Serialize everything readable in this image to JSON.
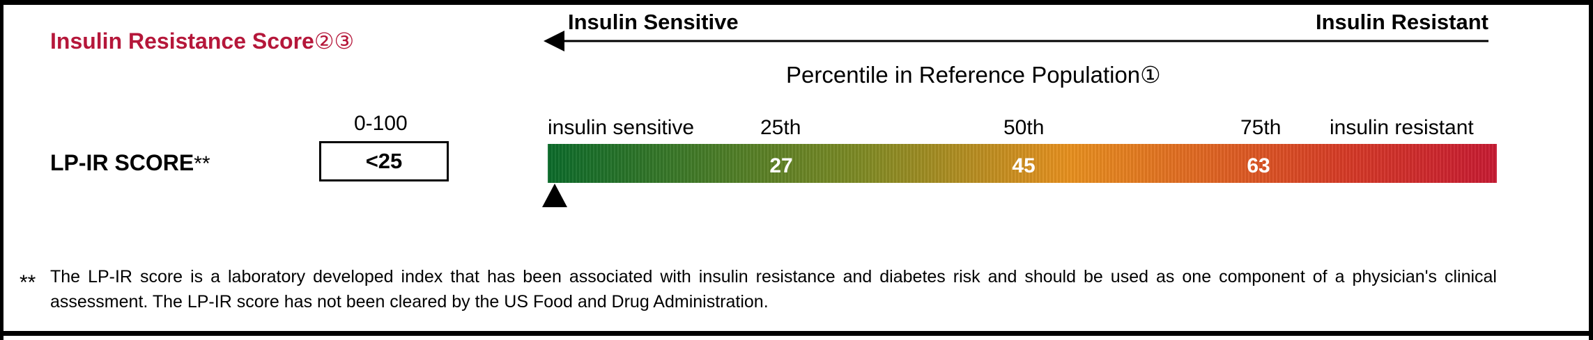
{
  "section": {
    "title": "Insulin Resistance Score",
    "refs": "②③"
  },
  "scale_header": {
    "left_label": "Insulin Sensitive",
    "right_label": "Insulin Resistant",
    "percentile_title": "Percentile in Reference Population①"
  },
  "score": {
    "label": "LP-IR SCORE",
    "label_suffix": "**",
    "range": "0-100",
    "value": "<25"
  },
  "scale": {
    "end_left": "insulin sensitive",
    "end_right": "insulin resistant",
    "ticks": [
      {
        "label": "25th",
        "value": "27"
      },
      {
        "label": "50th",
        "value": "45"
      },
      {
        "label": "75th",
        "value": "63"
      }
    ],
    "marker_percentile": 0,
    "colors": {
      "start": "#0b6b2a",
      "middle": "#e8901e",
      "end": "#c71a32"
    }
  },
  "footnote": {
    "marker": "**",
    "text": "The LP-IR score is a laboratory developed index that has been associated with insulin resistance and diabetes risk and should be used as one component of a physician's clinical assessment. The LP-IR score has not been cleared by the US Food and Drug Administration."
  }
}
